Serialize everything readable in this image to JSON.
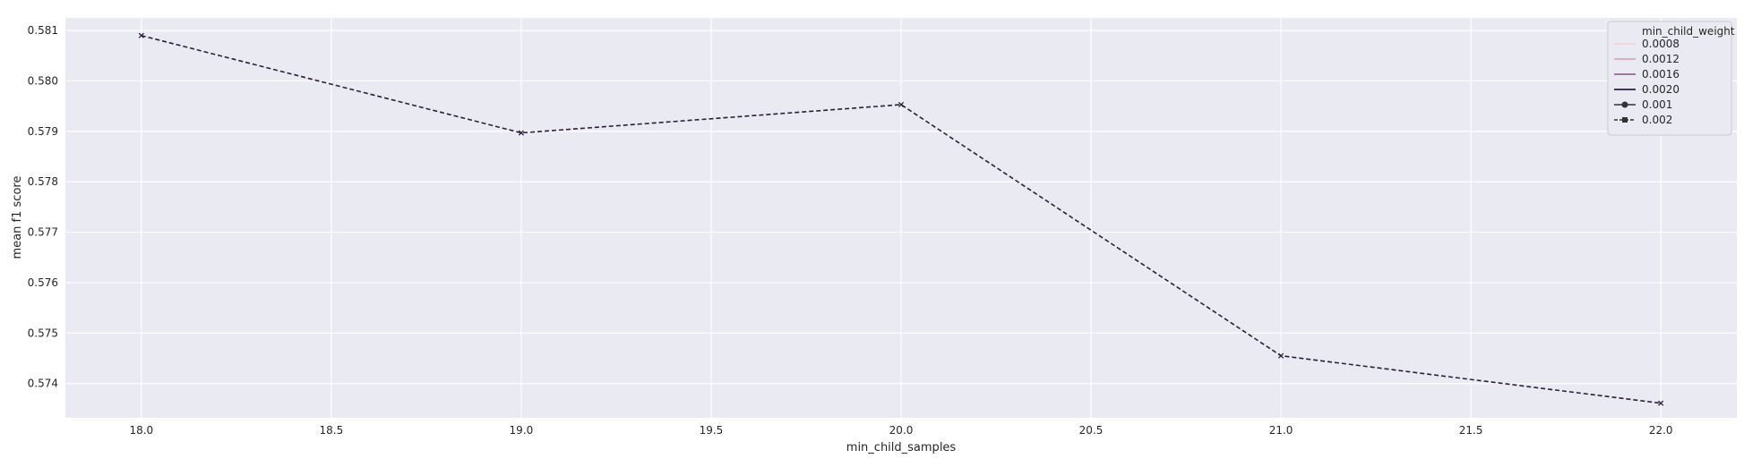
{
  "chart_data": {
    "type": "line",
    "title": "",
    "xlabel": "min_child_samples",
    "ylabel": "mean f1 score",
    "xlim": [
      17.8,
      22.2
    ],
    "ylim": [
      0.57332,
      0.58125
    ],
    "x_ticks": [
      "18.0",
      "18.5",
      "19.0",
      "19.5",
      "20.0",
      "20.5",
      "21.0",
      "21.5",
      "22.0"
    ],
    "y_ticks": [
      "0.574",
      "0.575",
      "0.576",
      "0.577",
      "0.578",
      "0.579",
      "0.580",
      "0.581"
    ],
    "grid": true,
    "background_color": "#eaeaf2",
    "grid_color": "#ffffff",
    "series": [
      {
        "x": [
          18,
          19,
          20,
          21,
          22
        ],
        "values": [
          0.5809,
          0.57897,
          0.57953,
          0.57455,
          0.57361
        ],
        "color": "#2d1e3e",
        "line_style": "dashed",
        "marker": "x"
      }
    ],
    "legend": {
      "placement": "top-right",
      "title": "min_child_weight",
      "entries": [
        {
          "label": "0.0008",
          "color": "#f1d0cf",
          "style": "solid",
          "marker": "none"
        },
        {
          "label": "0.0012",
          "color": "#d59bb0",
          "style": "solid",
          "marker": "none"
        },
        {
          "label": "0.0016",
          "color": "#8a4d88",
          "style": "solid",
          "marker": "none"
        },
        {
          "label": "0.0020",
          "color": "#2d1e3e",
          "style": "solid",
          "marker": "none"
        },
        {
          "label": "0.001",
          "color": "#333333",
          "style": "solid",
          "marker": "circle"
        },
        {
          "label": "0.002",
          "color": "#333333",
          "style": "dashed",
          "marker": "square"
        }
      ]
    }
  }
}
